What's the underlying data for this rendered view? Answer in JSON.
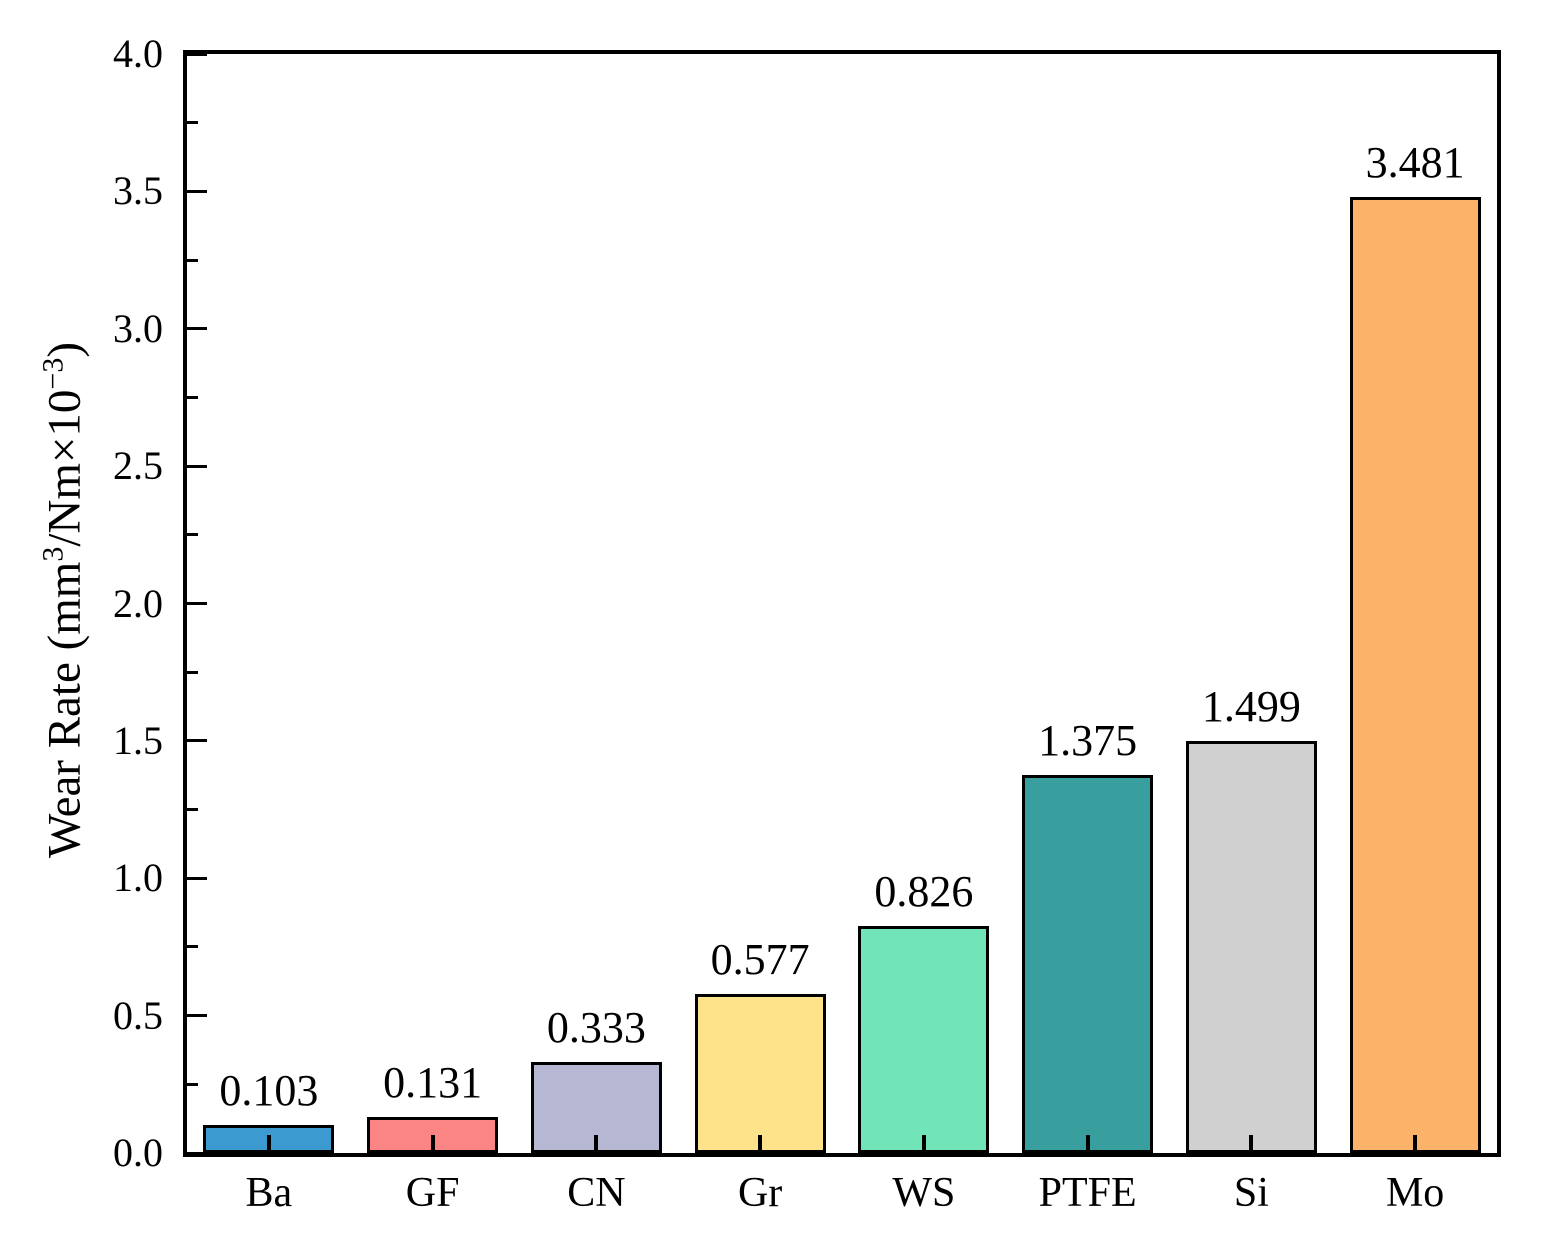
{
  "chart_data": {
    "type": "bar",
    "title": "",
    "xlabel": "",
    "ylabel": "Wear Rate (mm³/Nm×10⁻³)",
    "ylabel_parts": {
      "prefix": "Wear Rate (mm",
      "sup1": "3",
      "mid": "/Nm×10",
      "sup2": "−3",
      "suffix": ")"
    },
    "categories": [
      "Ba",
      "GF",
      "CN",
      "Gr",
      "WS",
      "PTFE",
      "Si",
      "Mo"
    ],
    "values": [
      0.103,
      0.131,
      0.333,
      0.577,
      0.826,
      1.375,
      1.499,
      3.481
    ],
    "value_labels": [
      "0.103",
      "0.131",
      "0.333",
      "0.577",
      "0.826",
      "1.375",
      "1.499",
      "3.481"
    ],
    "bar_colors": [
      "#3B9BD1",
      "#FB8484",
      "#B6B7D2",
      "#FFE38A",
      "#71E5B8",
      "#399E9E",
      "#D0D0D0",
      "#FBB369"
    ],
    "bar_border_color": "#000000",
    "axis_color": "#000000",
    "background_color": "#FFFFFF",
    "ylim": [
      0.0,
      4.0
    ],
    "y_major_step": 0.5,
    "y_minor_step": 0.25,
    "y_tick_labels": [
      "0.0",
      "0.5",
      "1.0",
      "1.5",
      "2.0",
      "2.5",
      "3.0",
      "3.5",
      "4.0"
    ],
    "grid": false,
    "legend": "none",
    "bar_width_fraction": 0.8,
    "ticks_direction": "in"
  }
}
